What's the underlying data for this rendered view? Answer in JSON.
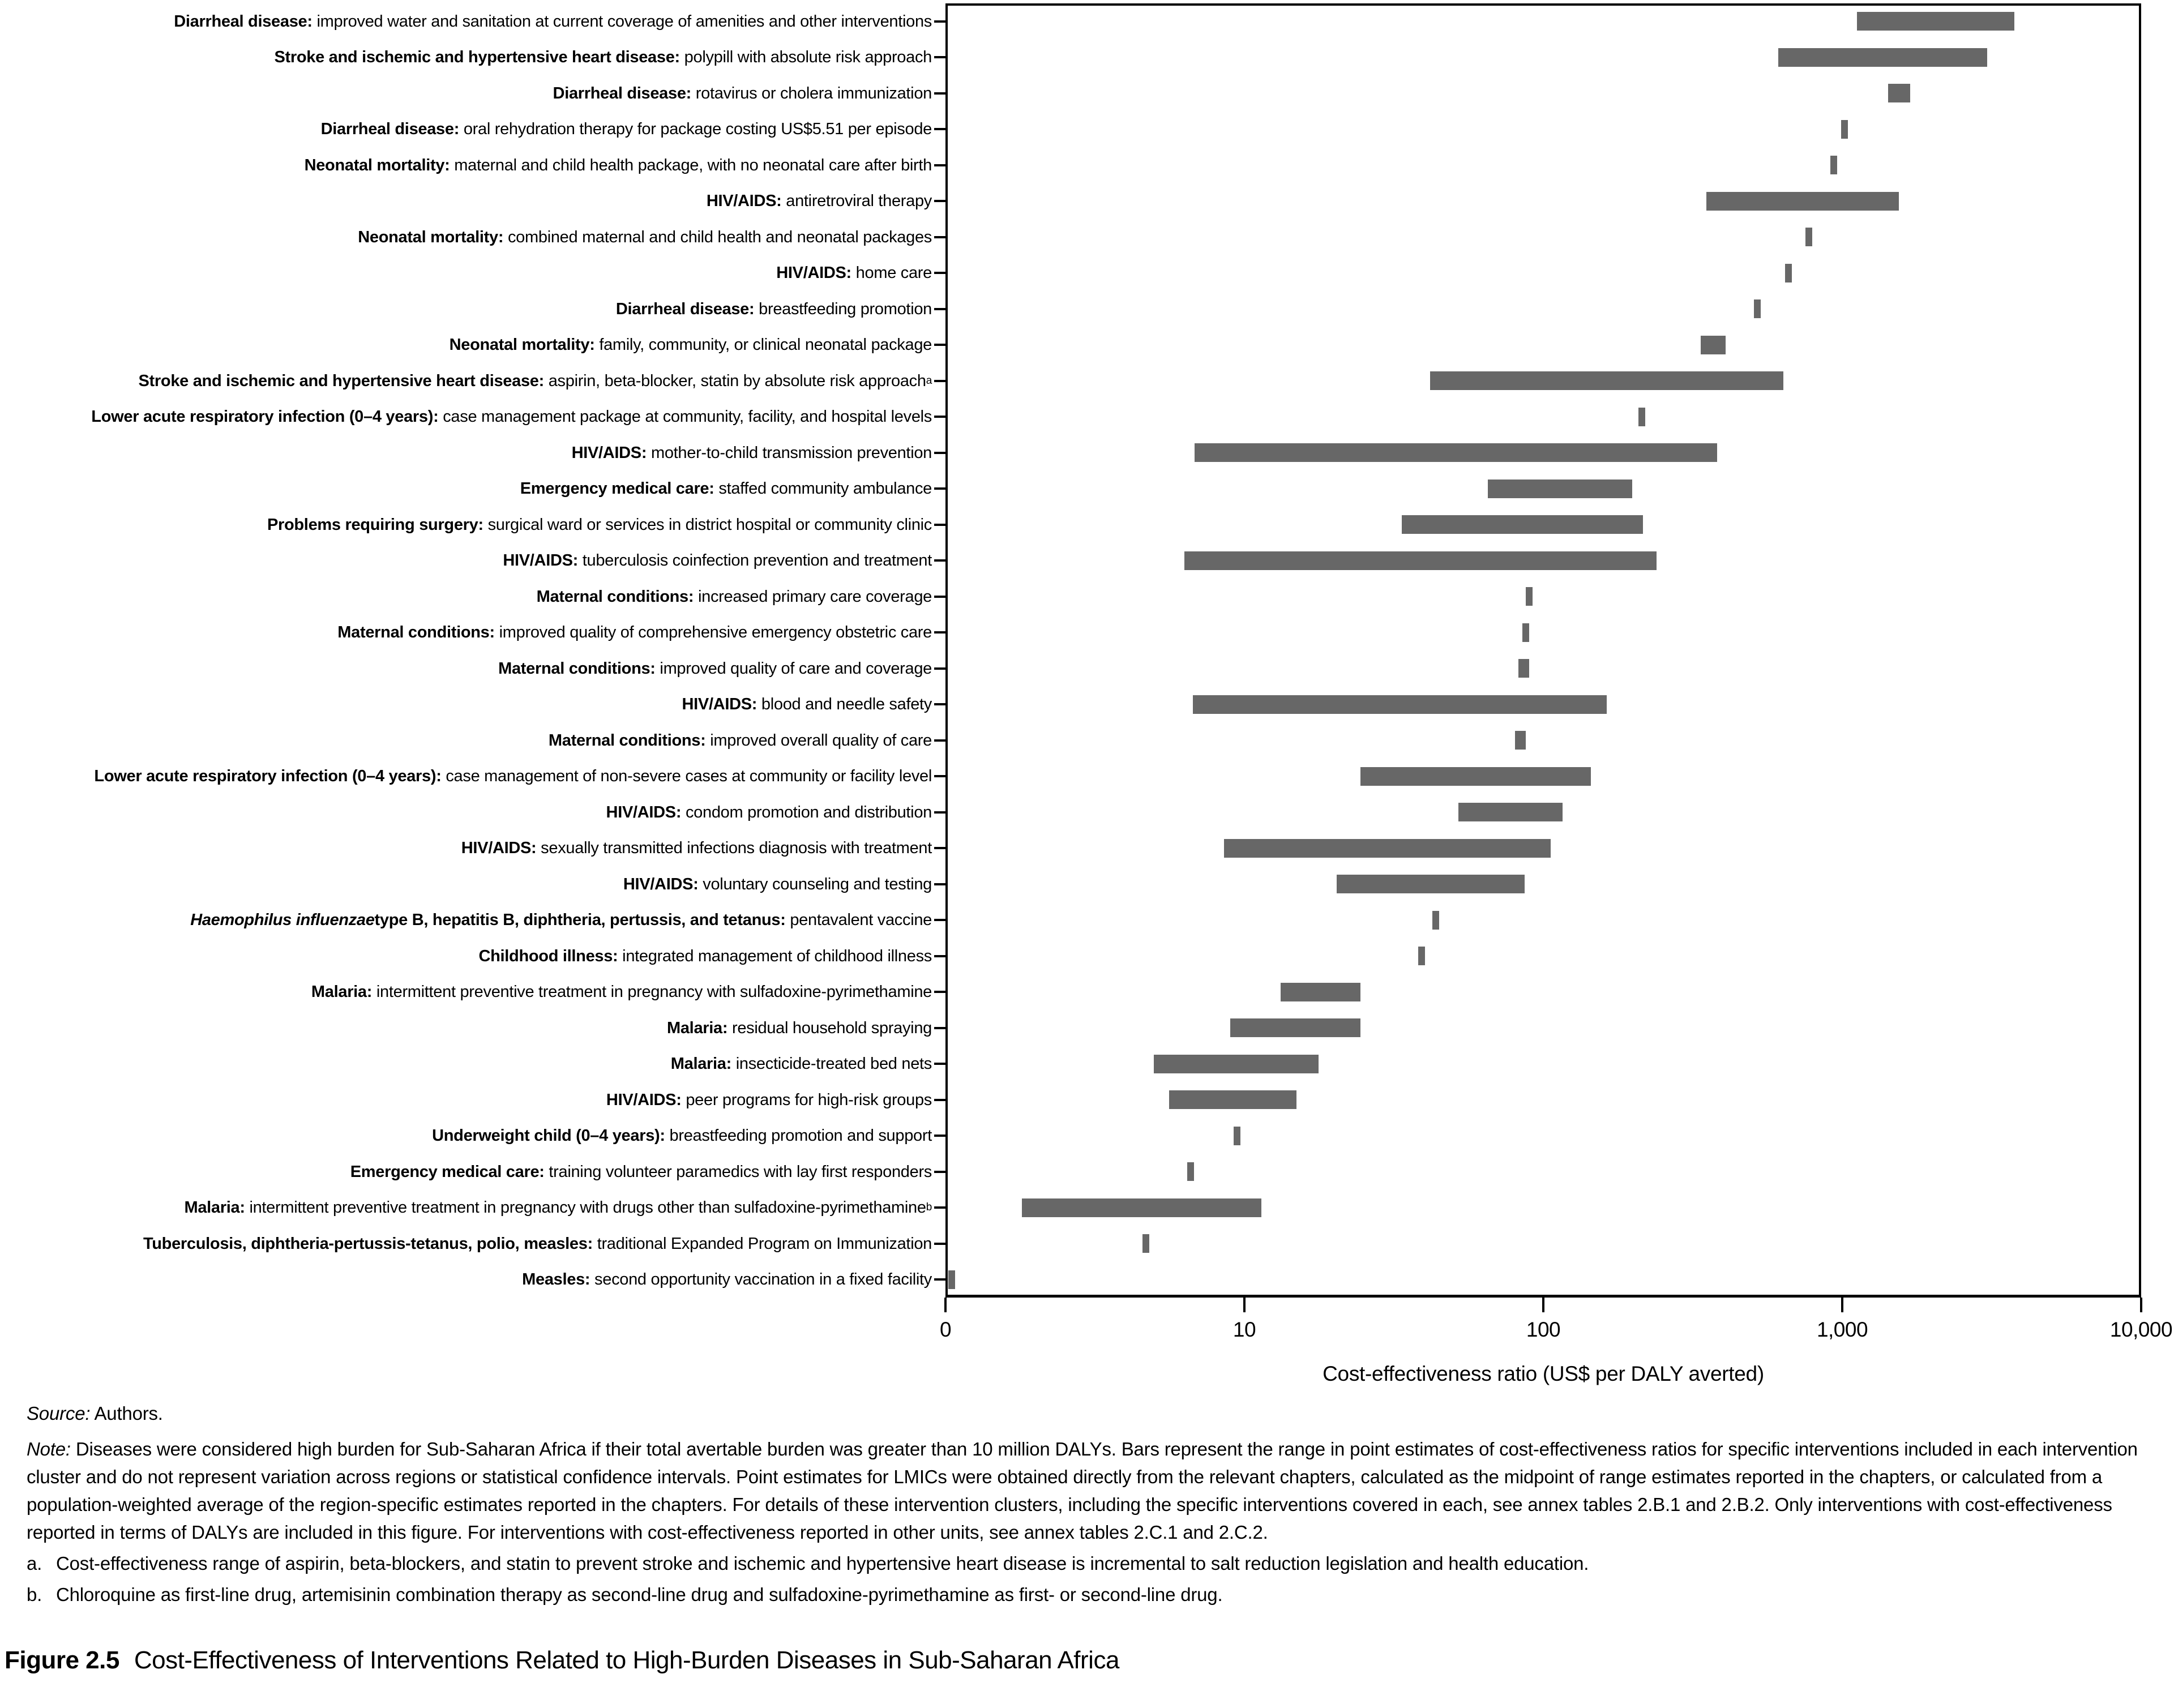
{
  "chart_data": {
    "type": "bar",
    "orientation": "horizontal-range",
    "x_scale": "log",
    "xlabel": "Cost-effectiveness ratio (US$ per DALY averted)",
    "xlim": [
      1,
      10000
    ],
    "x_ticks": [
      {
        "label": "0",
        "value": 1
      },
      {
        "label": "10",
        "value": 10
      },
      {
        "label": "100",
        "value": 100
      },
      {
        "label": "1,000",
        "value": 1000
      },
      {
        "label": "10,000",
        "value": 10000
      }
    ],
    "bar_color": "#676767",
    "grid": false,
    "legend": "none",
    "rows": [
      {
        "italic": "",
        "bold": "Diarrheal disease:",
        "desc": "improved water and sanitation at current coverage of amenities and other interventions",
        "sup": "",
        "lo": 1100,
        "hi": 3700
      },
      {
        "italic": "",
        "bold": "Stroke and ischemic and hypertensive heart disease:",
        "desc": "polypill with absolute risk approach",
        "sup": "",
        "lo": 600,
        "hi": 3000
      },
      {
        "italic": "",
        "bold": "Diarrheal disease:",
        "desc": "rotavirus or cholera immunization",
        "sup": "",
        "lo": 1400,
        "hi": 1660
      },
      {
        "italic": "",
        "bold": "Diarrheal disease:",
        "desc": "oral rehydration therapy for package costing US$5.51 per episode",
        "sup": "",
        "lo": 1000,
        "hi": 1000
      },
      {
        "italic": "",
        "bold": "Neonatal mortality:",
        "desc": "maternal and child health package, with no neonatal care after birth",
        "sup": "",
        "lo": 920,
        "hi": 920
      },
      {
        "italic": "",
        "bold": "HIV/AIDS:",
        "desc": "antiretroviral therapy",
        "sup": "",
        "lo": 345,
        "hi": 1520
      },
      {
        "italic": "",
        "bold": "Neonatal mortality:",
        "desc": "combined maternal and child health and neonatal packages",
        "sup": "",
        "lo": 760,
        "hi": 760
      },
      {
        "italic": "",
        "bold": "HIV/AIDS:",
        "desc": "home care",
        "sup": "",
        "lo": 650,
        "hi": 650
      },
      {
        "italic": "",
        "bold": "Diarrheal disease:",
        "desc": "breastfeeding promotion",
        "sup": "",
        "lo": 510,
        "hi": 510
      },
      {
        "italic": "",
        "bold": "Neonatal mortality:",
        "desc": "family, community, or clinical neonatal package",
        "sup": "",
        "lo": 330,
        "hi": 400
      },
      {
        "italic": "",
        "bold": "Stroke and ischemic and hypertensive heart disease:",
        "desc": "aspirin, beta-blocker, statin by absolute risk approach",
        "sup": "a",
        "lo": 41,
        "hi": 625
      },
      {
        "italic": "",
        "bold": "Lower acute respiratory infection (0–4 years):",
        "desc": "case management package at community, facility, and hospital levels",
        "sup": "",
        "lo": 210,
        "hi": 210
      },
      {
        "italic": "",
        "bold": "HIV/AIDS:",
        "desc": "mother-to-child transmission prevention",
        "sup": "",
        "lo": 6.7,
        "hi": 375
      },
      {
        "italic": "",
        "bold": "Emergency medical care:",
        "desc": "staffed community ambulance",
        "sup": "",
        "lo": 64,
        "hi": 195
      },
      {
        "italic": "",
        "bold": "Problems requiring surgery:",
        "desc": "surgical ward or services in district hospital or community clinic",
        "sup": "",
        "lo": 33,
        "hi": 212
      },
      {
        "italic": "",
        "bold": "HIV/AIDS:",
        "desc": "tuberculosis coinfection prevention and treatment",
        "sup": "",
        "lo": 6.2,
        "hi": 235
      },
      {
        "italic": "",
        "bold": "Maternal conditions:",
        "desc": "increased primary care coverage",
        "sup": "",
        "lo": 88,
        "hi": 88
      },
      {
        "italic": "",
        "bold": "Maternal conditions:",
        "desc": "improved quality of comprehensive emergency obstetric care",
        "sup": "",
        "lo": 86,
        "hi": 86
      },
      {
        "italic": "",
        "bold": "Maternal conditions:",
        "desc": "improved quality of care and coverage",
        "sup": "",
        "lo": 81,
        "hi": 88
      },
      {
        "italic": "",
        "bold": "HIV/AIDS:",
        "desc": "blood and needle safety",
        "sup": "",
        "lo": 6.6,
        "hi": 160
      },
      {
        "italic": "",
        "bold": "Maternal conditions:",
        "desc": "improved overall quality of care",
        "sup": "",
        "lo": 79,
        "hi": 86
      },
      {
        "italic": "",
        "bold": "Lower acute respiratory infection (0–4 years):",
        "desc": "case management of non-severe cases at community or facility level",
        "sup": "",
        "lo": 24,
        "hi": 142
      },
      {
        "italic": "",
        "bold": "HIV/AIDS:",
        "desc": "condom promotion and distribution",
        "sup": "",
        "lo": 51,
        "hi": 114
      },
      {
        "italic": "",
        "bold": "HIV/AIDS:",
        "desc": "sexually transmitted infections diagnosis with treatment",
        "sup": "",
        "lo": 8.4,
        "hi": 104
      },
      {
        "italic": "",
        "bold": "HIV/AIDS:",
        "desc": "voluntary counseling and testing",
        "sup": "",
        "lo": 20,
        "hi": 85
      },
      {
        "italic": "Haemophilus influenzae",
        "bold": " type B, hepatitis B, diphtheria, pertussis, and tetanus:",
        "desc": "pentavalent vaccine",
        "sup": "",
        "lo": 43,
        "hi": 43
      },
      {
        "italic": "",
        "bold": "Childhood illness:",
        "desc": "integrated management of childhood illness",
        "sup": "",
        "lo": 38.5,
        "hi": 38.5
      },
      {
        "italic": "",
        "bold": "Malaria:",
        "desc": "intermittent preventive treatment in pregnancy with sulfadoxine-pyrimethamine",
        "sup": "",
        "lo": 13,
        "hi": 24
      },
      {
        "italic": "",
        "bold": "Malaria:",
        "desc": "residual household spraying",
        "sup": "",
        "lo": 8.8,
        "hi": 24
      },
      {
        "italic": "",
        "bold": "Malaria:",
        "desc": "insecticide-treated bed nets",
        "sup": "",
        "lo": 4.9,
        "hi": 17.4
      },
      {
        "italic": "",
        "bold": "HIV/AIDS:",
        "desc": "peer programs for high-risk groups",
        "sup": "",
        "lo": 5.5,
        "hi": 14.7
      },
      {
        "italic": "",
        "bold": "Underweight child (0–4 years):",
        "desc": "breastfeeding promotion and support",
        "sup": "",
        "lo": 9.3,
        "hi": 9.3
      },
      {
        "italic": "",
        "bold": "Emergency medical care:",
        "desc": "training volunteer paramedics with lay first responders",
        "sup": "",
        "lo": 6.5,
        "hi": 6.5
      },
      {
        "italic": "",
        "bold": "Malaria:",
        "desc": "intermittent preventive treatment in pregnancy with drugs other than sulfadoxine-pyrimethamine",
        "sup": "b",
        "lo": 1.77,
        "hi": 11.2
      },
      {
        "italic": "",
        "bold": "Tuberculosis, diphtheria-pertussis-tetanus, polio, measles:",
        "desc": "traditional Expanded Program on Immunization",
        "sup": "",
        "lo": 4.6,
        "hi": 4.6
      },
      {
        "italic": "",
        "bold": "Measles:",
        "desc": "second opportunity vaccination in a fixed facility",
        "sup": "",
        "lo": 1.03,
        "hi": 1.03
      }
    ]
  },
  "notes": {
    "source_label": "Source:",
    "source_text": "Authors.",
    "note_label": "Note:",
    "note_text": "Diseases were considered high burden for Sub-Saharan Africa if their total avertable burden was greater than 10 million DALYs. Bars represent the range in point estimates of cost-effectiveness ratios for specific interventions included in each intervention cluster and do not represent variation across regions or statistical confidence intervals. Point estimates for LMICs were obtained directly from the relevant chapters, calculated as the midpoint of range estimates reported in the chapters, or calculated from a population-weighted average of the region-specific estimates reported in the chapters. For details of these intervention clusters, including the specific interventions covered in each, see annex tables 2.B.1 and 2.B.2. Only interventions with cost-effectiveness reported in terms of DALYs are included in this figure. For interventions with cost-effectiveness reported in other units, see annex tables 2.C.1 and 2.C.2.",
    "footnote_a_label": "a.",
    "footnote_a": "Cost-effectiveness range of aspirin, beta-blockers, and statin to prevent stroke and ischemic and hypertensive heart disease is incremental to salt reduction legislation and health education.",
    "footnote_b_label": "b.",
    "footnote_b": "Chloroquine as first-line drug, artemisinin combination therapy as second-line drug and sulfadoxine-pyrimethamine as first- or second-line drug."
  },
  "caption": {
    "number": "Figure 2.5",
    "title": "Cost-Effectiveness of Interventions Related to High-Burden Diseases in Sub-Saharan Africa"
  }
}
